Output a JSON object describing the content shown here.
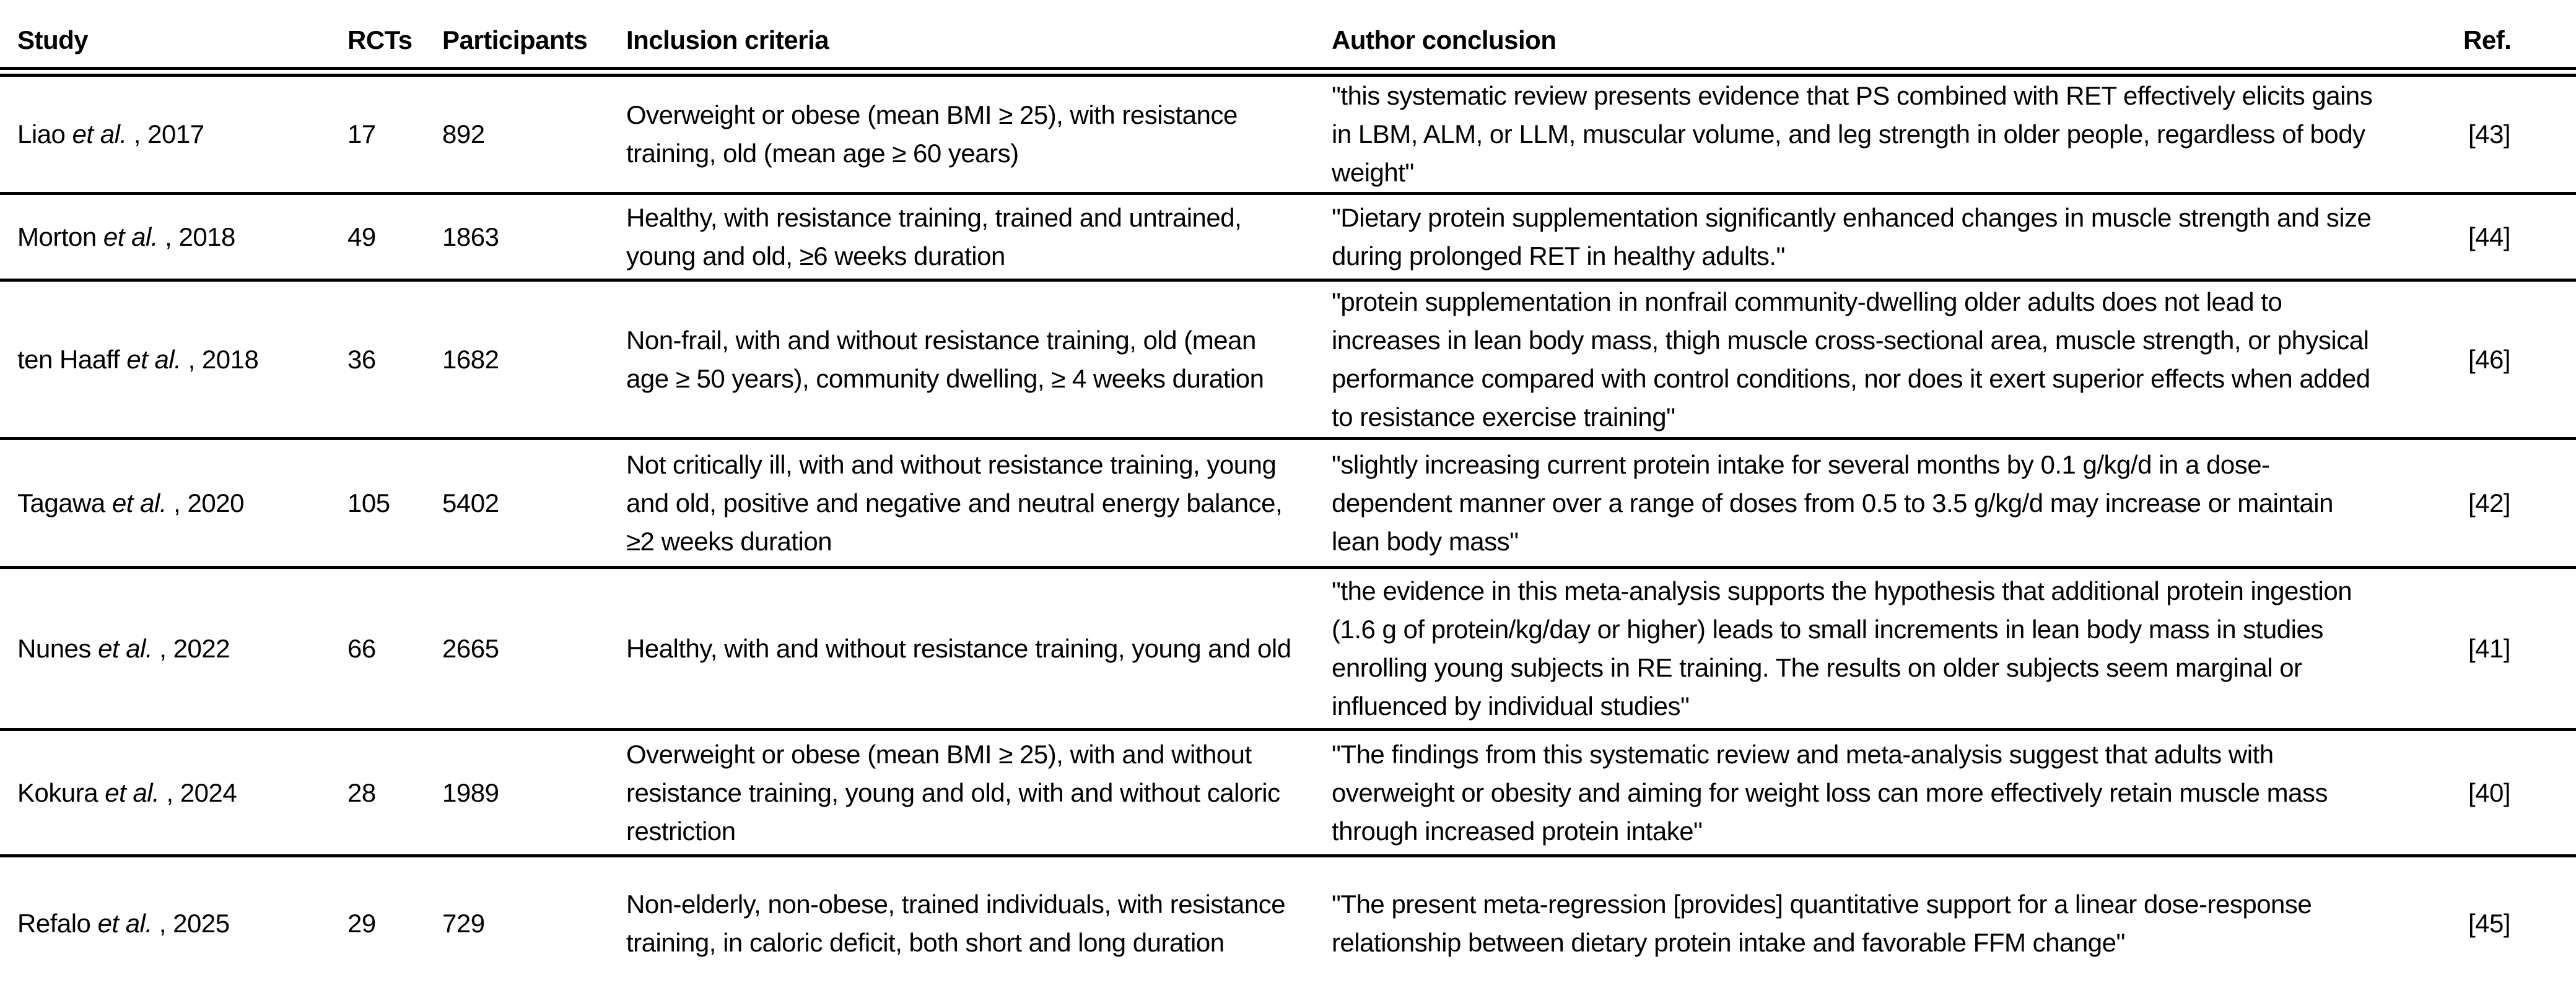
{
  "table": {
    "columns": [
      "Study",
      "RCTs",
      "Participants",
      "Inclusion criteria",
      "Author conclusion",
      "Ref."
    ],
    "rows": [
      {
        "author": "Liao ",
        "etal": "et al.",
        "year": " , 2017",
        "rcts": "17",
        "participants": "892",
        "inclusion": "Overweight or obese (mean BMI ≥ 25), with resistance training, old (mean age ≥ 60 years)",
        "conclusion": "\"this systematic review presents evidence that PS combined with RET effectively elicits gains in LBM, ALM, or LLM, muscular volume, and leg strength in older people, regardless of body weight\"",
        "ref": "[43]"
      },
      {
        "author": "Morton ",
        "etal": "et al.",
        "year": " , 2018",
        "rcts": "49",
        "participants": "1863",
        "inclusion": "Healthy, with resistance training, trained and untrained, young and old, ≥6 weeks duration",
        "conclusion": "\"Dietary protein supplementation significantly enhanced changes in muscle strength and size during prolonged RET in healthy adults.\"",
        "ref": "[44]"
      },
      {
        "author": "ten Haaff ",
        "etal": "et al.",
        "year": " , 2018",
        "rcts": "36",
        "participants": "1682",
        "inclusion": "Non-frail, with and without resistance training, old (mean age ≥ 50 years), community dwelling, ≥ 4 weeks duration",
        "conclusion": "\"protein supplementation in nonfrail community-dwelling older adults does not lead to increases in lean body mass, thigh muscle cross-sectional area, muscle strength, or physical performance compared with control conditions, nor does it exert superior effects when added to resistance exercise training\"",
        "ref": "[46]"
      },
      {
        "author": "Tagawa ",
        "etal": "et al.",
        "year": " , 2020",
        "rcts": "105",
        "participants": "5402",
        "inclusion": "Not critically ill, with and without resistance training, young and old, positive and negative and neutral energy balance, ≥2 weeks duration",
        "conclusion": "\"slightly increasing current protein intake for several months by 0.1 g/kg/d in a dose-dependent manner over a range of doses from 0.5 to 3.5 g/kg/d may increase or maintain lean body mass\"",
        "ref": "[42]"
      },
      {
        "author": "Nunes ",
        "etal": "et al.",
        "year": " , 2022",
        "rcts": "66",
        "participants": "2665",
        "inclusion": "Healthy, with and without resistance training, young and old",
        "conclusion": "\"the evidence in this meta-analysis supports the hypothesis that additional protein ingestion (1.6 g of protein/kg/day or higher) leads to small increments in lean body mass in studies enrolling young subjects in RE training. The results on older subjects seem marginal or influenced by individual studies\"",
        "ref": "[41]"
      },
      {
        "author": "Kokura ",
        "etal": "et al.",
        "year": " , 2024",
        "rcts": "28",
        "participants": "1989",
        "inclusion": "Overweight or obese (mean BMI ≥ 25), with and without resistance training, young and old, with and without caloric restriction",
        "conclusion": "\"The findings from this systematic review and meta-analysis suggest that adults with overweight or obesity and aiming for weight loss can more effectively retain muscle mass through increased protein intake\"",
        "ref": "[40]"
      },
      {
        "author": "Refalo ",
        "etal": "et al.",
        "year": " , 2025",
        "rcts": "29",
        "participants": "729",
        "inclusion": "Non-elderly, non-obese, trained individuals, with resistance training, in caloric deficit, both short and long duration",
        "conclusion": "\"The present meta-regression [provides] quantitative support for a linear dose-response relationship between dietary protein intake and favorable FFM change\"",
        "ref": "[45]"
      }
    ]
  }
}
